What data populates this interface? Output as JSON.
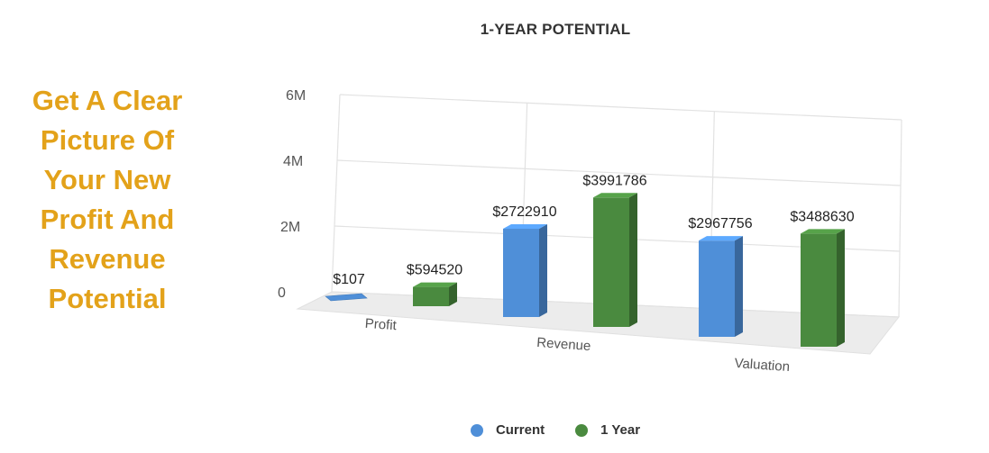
{
  "tagline": [
    "Get A Clear",
    "Picture Of",
    "Your New",
    "Profit And",
    "Revenue",
    "Potential"
  ],
  "chart_data": {
    "type": "bar",
    "title": "1-YEAR POTENTIAL",
    "categories": [
      "Profit",
      "Revenue",
      "Valuation"
    ],
    "series": [
      {
        "name": "Current",
        "color": "#4f8fd8",
        "values": [
          107,
          2722910,
          2967756
        ],
        "labels": [
          "$107",
          "$2722910",
          "$2967756"
        ]
      },
      {
        "name": "1 Year",
        "color": "#4a8a3f",
        "values": [
          594520,
          3991786,
          3488630
        ],
        "labels": [
          "$594520",
          "$3991786",
          "$3488630"
        ]
      }
    ],
    "y_ticks": [
      "0",
      "2M",
      "4M",
      "6M"
    ],
    "ylim": [
      0,
      6000000
    ],
    "grid": true,
    "legend_position": "bottom"
  }
}
